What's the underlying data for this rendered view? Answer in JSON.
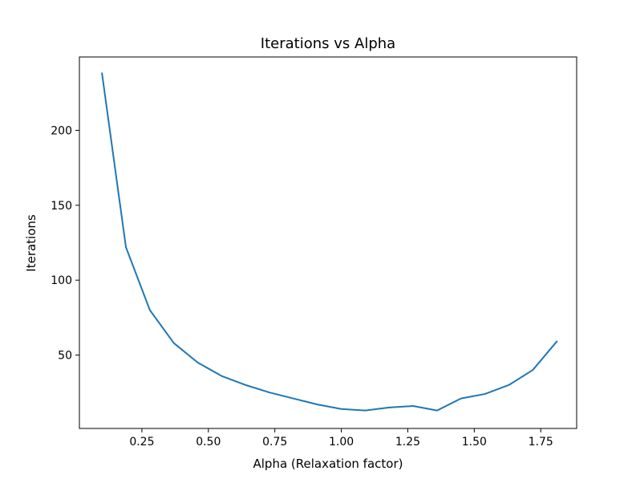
{
  "chart_data": {
    "type": "line",
    "title": "Iterations vs Alpha",
    "xlabel": "Alpha (Relaxation factor)",
    "ylabel": "Iterations",
    "xlim": [
      0.015,
      1.885
    ],
    "ylim": [
      1,
      249
    ],
    "xticks": [
      0.25,
      0.5,
      0.75,
      1.0,
      1.25,
      1.5,
      1.75
    ],
    "xtick_labels": [
      "0.25",
      "0.50",
      "0.75",
      "1.00",
      "1.25",
      "1.50",
      "1.75"
    ],
    "yticks": [
      50,
      100,
      150,
      200
    ],
    "ytick_labels": [
      "50",
      "100",
      "150",
      "200"
    ],
    "grid": false,
    "legend": "none",
    "series": [
      {
        "color": "#1f77b4",
        "x": [
          0.1,
          0.19,
          0.28,
          0.37,
          0.46,
          0.55,
          0.64,
          0.73,
          0.82,
          0.91,
          1.0,
          1.09,
          1.18,
          1.27,
          1.36,
          1.45,
          1.54,
          1.63,
          1.72,
          1.81
        ],
        "y": [
          238,
          122,
          80,
          58,
          45,
          36,
          30,
          25,
          21,
          17,
          14,
          13,
          15,
          16,
          13,
          21,
          24,
          30,
          40,
          59
        ]
      }
    ]
  }
}
